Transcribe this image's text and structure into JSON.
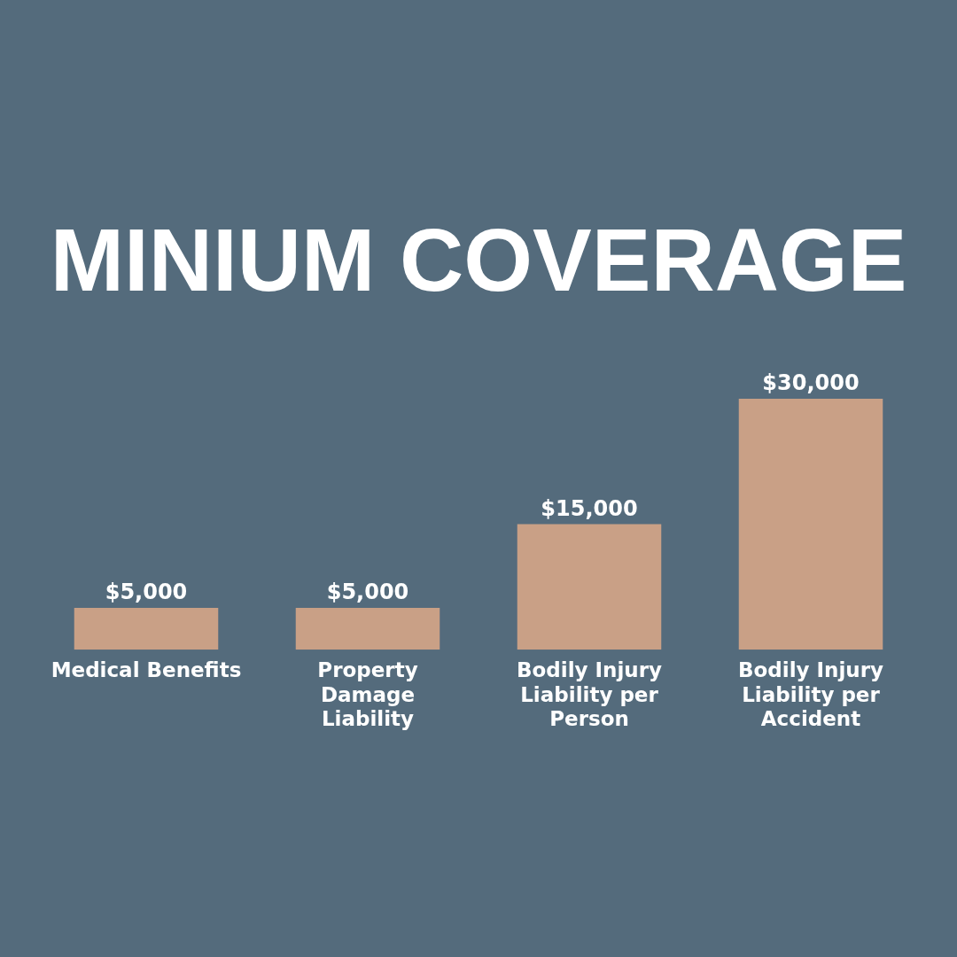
{
  "chart_data": {
    "type": "bar",
    "title": "MINIUM COVERAGE",
    "categories": [
      "Medical Benefits",
      "Property Damage Liability",
      "Bodily Injury Liability per Person",
      "Bodily Injury Liability per Accident"
    ],
    "values": [
      5000,
      5000,
      15000,
      30000
    ],
    "color": "#c9a086",
    "value_labels": [
      "$5,000",
      "$5,000",
      "$15,000",
      "$30,000"
    ],
    "tick_labels": "x",
    "grid": false,
    "legend": false
  }
}
